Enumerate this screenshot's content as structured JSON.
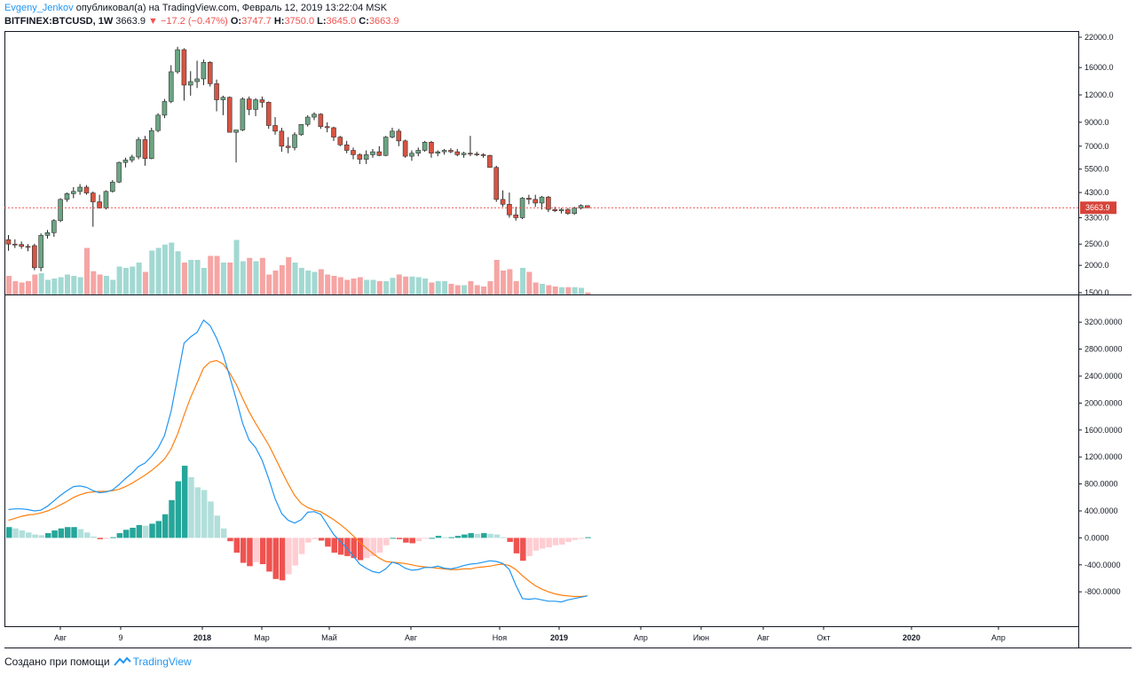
{
  "header": {
    "author": "Evgeny_Jenkov",
    "published_text": "опубликовал(а) на TradingView.com, Февраль 12, 2019 13:22:04 MSK",
    "symbol": "BITFINEX:BTCUSD, 1W",
    "last_price": "3663.9",
    "change": "−17.2 (−0.47%)",
    "change_arrow": "▼",
    "o_label": "O:",
    "o_value": "3747.7",
    "h_label": "H:",
    "h_value": "3750.0",
    "l_label": "L:",
    "l_value": "3645.0",
    "c_label": "C:",
    "c_value": "3663.9"
  },
  "footer": {
    "created_with": "Создано при помощи",
    "brand": "TradingView"
  },
  "colors": {
    "up": "#6ba583",
    "down": "#d75442",
    "vol_up": "#a2d9d2",
    "vol_down": "#f5a5a4",
    "macd_line": "#2196f3",
    "signal_line": "#ff7f0e",
    "hist_up_strong": "#26a69a",
    "hist_up_weak": "#b2dfdb",
    "hist_down_strong": "#ef5350",
    "hist_down_weak": "#ffcdd2",
    "price_line": "#ef5350"
  },
  "chart_data": [
    {
      "type": "candlestick",
      "title": "",
      "y_scale": "log",
      "ylim": [
        1500,
        22000
      ],
      "y_ticks": [
        "22000.0",
        "16000.0",
        "12000.0",
        "9000.0",
        "7000.0",
        "5500.0",
        "4300.0",
        "3300.0",
        "2500.0",
        "2000.0",
        "1500.0"
      ],
      "current_price_label": "3663.9",
      "x_ticks": [
        "Авг",
        "9",
        "2018",
        "Мар",
        "Май",
        "Авг",
        "Ноя",
        "2019",
        "Апр",
        "Июн",
        "Авг",
        "Окт",
        "2020",
        "Апр"
      ],
      "candles": [
        {
          "o": 2620,
          "h": 2750,
          "l": 2330,
          "c": 2500
        },
        {
          "o": 2500,
          "h": 2630,
          "l": 2400,
          "c": 2490
        },
        {
          "o": 2490,
          "h": 2570,
          "l": 2380,
          "c": 2440
        },
        {
          "o": 2440,
          "h": 2500,
          "l": 2320,
          "c": 2420
        },
        {
          "o": 2460,
          "h": 2510,
          "l": 1900,
          "c": 1950
        },
        {
          "o": 1950,
          "h": 2800,
          "l": 1880,
          "c": 2740
        },
        {
          "o": 2740,
          "h": 2900,
          "l": 2650,
          "c": 2820
        },
        {
          "o": 2820,
          "h": 3250,
          "l": 2700,
          "c": 3200
        },
        {
          "o": 3200,
          "h": 4050,
          "l": 3150,
          "c": 4000
        },
        {
          "o": 4000,
          "h": 4300,
          "l": 3900,
          "c": 4250
        },
        {
          "o": 4250,
          "h": 4550,
          "l": 4050,
          "c": 4350
        },
        {
          "o": 4350,
          "h": 4700,
          "l": 4200,
          "c": 4550
        },
        {
          "o": 4550,
          "h": 4650,
          "l": 4200,
          "c": 4280
        },
        {
          "o": 4280,
          "h": 4350,
          "l": 3000,
          "c": 3900
        },
        {
          "o": 3900,
          "h": 4200,
          "l": 3700,
          "c": 3650
        },
        {
          "o": 3650,
          "h": 4400,
          "l": 3600,
          "c": 4350
        },
        {
          "o": 4350,
          "h": 4900,
          "l": 4300,
          "c": 4800
        },
        {
          "o": 4800,
          "h": 5950,
          "l": 4750,
          "c": 5900
        },
        {
          "o": 5900,
          "h": 6200,
          "l": 5600,
          "c": 6050
        },
        {
          "o": 6050,
          "h": 6400,
          "l": 5900,
          "c": 6250
        },
        {
          "o": 6250,
          "h": 7700,
          "l": 6100,
          "c": 7500
        },
        {
          "o": 7500,
          "h": 7800,
          "l": 5700,
          "c": 6150
        },
        {
          "o": 6150,
          "h": 8500,
          "l": 6100,
          "c": 8250
        },
        {
          "o": 8250,
          "h": 9900,
          "l": 8100,
          "c": 9700
        },
        {
          "o": 9700,
          "h": 11500,
          "l": 9400,
          "c": 11200
        },
        {
          "o": 11200,
          "h": 16400,
          "l": 11000,
          "c": 15300
        },
        {
          "o": 15300,
          "h": 19900,
          "l": 15000,
          "c": 19300
        },
        {
          "o": 19300,
          "h": 19600,
          "l": 11300,
          "c": 13300
        },
        {
          "o": 13300,
          "h": 15400,
          "l": 11900,
          "c": 13800
        },
        {
          "o": 13800,
          "h": 17200,
          "l": 12900,
          "c": 14200
        },
        {
          "o": 14200,
          "h": 17400,
          "l": 13300,
          "c": 16900
        },
        {
          "o": 16900,
          "h": 17100,
          "l": 13100,
          "c": 13500
        },
        {
          "o": 13500,
          "h": 14100,
          "l": 10100,
          "c": 11400
        },
        {
          "o": 11400,
          "h": 11900,
          "l": 9700,
          "c": 11700
        },
        {
          "o": 11700,
          "h": 11800,
          "l": 8200,
          "c": 8100
        },
        {
          "o": 8100,
          "h": 8200,
          "l": 5900,
          "c": 8300
        },
        {
          "o": 8300,
          "h": 11700,
          "l": 8200,
          "c": 11500
        },
        {
          "o": 11500,
          "h": 11800,
          "l": 9700,
          "c": 10300
        },
        {
          "o": 10300,
          "h": 11600,
          "l": 9600,
          "c": 11400
        },
        {
          "o": 11400,
          "h": 11800,
          "l": 10500,
          "c": 11100
        },
        {
          "o": 11100,
          "h": 11200,
          "l": 8400,
          "c": 8700
        },
        {
          "o": 8700,
          "h": 9500,
          "l": 7900,
          "c": 8200
        },
        {
          "o": 8200,
          "h": 8500,
          "l": 6600,
          "c": 7000
        },
        {
          "o": 7000,
          "h": 7700,
          "l": 6500,
          "c": 6900
        },
        {
          "o": 6900,
          "h": 8100,
          "l": 6700,
          "c": 7900
        },
        {
          "o": 7900,
          "h": 8800,
          "l": 7800,
          "c": 8800
        },
        {
          "o": 8800,
          "h": 9700,
          "l": 8600,
          "c": 9500
        },
        {
          "o": 9500,
          "h": 10000,
          "l": 9200,
          "c": 9800
        },
        {
          "o": 9800,
          "h": 9900,
          "l": 8400,
          "c": 8600
        },
        {
          "o": 8600,
          "h": 9000,
          "l": 8100,
          "c": 8500
        },
        {
          "o": 8500,
          "h": 8600,
          "l": 7400,
          "c": 7700
        },
        {
          "o": 7700,
          "h": 7800,
          "l": 7000,
          "c": 7100
        },
        {
          "o": 7100,
          "h": 7400,
          "l": 6500,
          "c": 6700
        },
        {
          "o": 6700,
          "h": 6900,
          "l": 6100,
          "c": 6400
        },
        {
          "o": 6400,
          "h": 6500,
          "l": 5800,
          "c": 6100
        },
        {
          "o": 6100,
          "h": 6700,
          "l": 5800,
          "c": 6400
        },
        {
          "o": 6400,
          "h": 6800,
          "l": 6200,
          "c": 6600
        },
        {
          "o": 6600,
          "h": 7000,
          "l": 6300,
          "c": 6350
        },
        {
          "o": 6350,
          "h": 7800,
          "l": 6300,
          "c": 7700
        },
        {
          "o": 7700,
          "h": 8500,
          "l": 7600,
          "c": 8200
        },
        {
          "o": 8200,
          "h": 8400,
          "l": 7000,
          "c": 7400
        },
        {
          "o": 7400,
          "h": 7500,
          "l": 6200,
          "c": 6300
        },
        {
          "o": 6300,
          "h": 6700,
          "l": 6000,
          "c": 6500
        },
        {
          "o": 6500,
          "h": 6900,
          "l": 6300,
          "c": 6700
        },
        {
          "o": 6700,
          "h": 7400,
          "l": 6600,
          "c": 7300
        },
        {
          "o": 7300,
          "h": 7400,
          "l": 6200,
          "c": 6500
        },
        {
          "o": 6500,
          "h": 6700,
          "l": 6300,
          "c": 6600
        },
        {
          "o": 6600,
          "h": 6800,
          "l": 6400,
          "c": 6700
        },
        {
          "o": 6700,
          "h": 6850,
          "l": 6500,
          "c": 6600
        },
        {
          "o": 6600,
          "h": 6800,
          "l": 6300,
          "c": 6400
        },
        {
          "o": 6400,
          "h": 6600,
          "l": 6200,
          "c": 6500
        },
        {
          "o": 6500,
          "h": 7800,
          "l": 6300,
          "c": 6450
        },
        {
          "o": 6450,
          "h": 6600,
          "l": 6300,
          "c": 6400
        },
        {
          "o": 6400,
          "h": 6500,
          "l": 6200,
          "c": 6350
        },
        {
          "o": 6350,
          "h": 6400,
          "l": 5600,
          "c": 5600
        },
        {
          "o": 5600,
          "h": 5700,
          "l": 3900,
          "c": 4000
        },
        {
          "o": 4000,
          "h": 4400,
          "l": 3700,
          "c": 3800
        },
        {
          "o": 3800,
          "h": 4300,
          "l": 3300,
          "c": 3400
        },
        {
          "o": 3400,
          "h": 3700,
          "l": 3200,
          "c": 3300
        },
        {
          "o": 3300,
          "h": 4100,
          "l": 3250,
          "c": 4050
        },
        {
          "o": 4050,
          "h": 4200,
          "l": 3800,
          "c": 4000
        },
        {
          "o": 4000,
          "h": 4200,
          "l": 3700,
          "c": 3850
        },
        {
          "o": 3850,
          "h": 4150,
          "l": 3600,
          "c": 4100
        },
        {
          "o": 4100,
          "h": 4150,
          "l": 3500,
          "c": 3600
        },
        {
          "o": 3600,
          "h": 3700,
          "l": 3500,
          "c": 3550
        },
        {
          "o": 3550,
          "h": 3650,
          "l": 3450,
          "c": 3600
        },
        {
          "o": 3600,
          "h": 3650,
          "l": 3400,
          "c": 3450
        },
        {
          "o": 3450,
          "h": 3700,
          "l": 3400,
          "c": 3650
        },
        {
          "o": 3650,
          "h": 3800,
          "l": 3600,
          "c": 3750
        },
        {
          "o": 3748,
          "h": 3750,
          "l": 3645,
          "c": 3664
        }
      ],
      "volume": [
        0.28,
        0.2,
        0.18,
        0.2,
        0.3,
        0.32,
        0.22,
        0.24,
        0.26,
        0.3,
        0.28,
        0.26,
        0.7,
        0.35,
        0.3,
        0.28,
        0.22,
        0.42,
        0.4,
        0.42,
        0.48,
        0.34,
        0.66,
        0.7,
        0.75,
        0.78,
        0.65,
        0.48,
        0.52,
        0.52,
        0.4,
        0.58,
        0.58,
        0.48,
        0.48,
        0.82,
        0.5,
        0.55,
        0.5,
        0.55,
        0.3,
        0.36,
        0.44,
        0.56,
        0.48,
        0.4,
        0.36,
        0.34,
        0.38,
        0.3,
        0.28,
        0.26,
        0.22,
        0.24,
        0.26,
        0.22,
        0.22,
        0.2,
        0.2,
        0.25,
        0.3,
        0.27,
        0.27,
        0.26,
        0.24,
        0.18,
        0.2,
        0.2,
        0.16,
        0.14,
        0.14,
        0.2,
        0.14,
        0.12,
        0.2,
        0.52,
        0.36,
        0.38,
        0.2,
        0.4,
        0.34,
        0.18,
        0.16,
        0.14,
        0.12,
        0.11,
        0.11,
        0.11,
        0.1,
        0.03
      ]
    },
    {
      "type": "line",
      "title": "",
      "ylim": [
        -1100,
        3400
      ],
      "y_ticks": [
        "3200.0000",
        "2800.0000",
        "2400.0000",
        "2000.0000",
        "1600.0000",
        "1200.0000",
        "800.0000",
        "400.0000",
        "0.0000",
        "-400.0000",
        "-800.0000"
      ],
      "series": [
        {
          "key": "macd",
          "values": [
            420,
            430,
            430,
            420,
            400,
            410,
            470,
            550,
            630,
            700,
            760,
            770,
            750,
            700,
            670,
            680,
            710,
            790,
            880,
            960,
            1060,
            1110,
            1210,
            1330,
            1520,
            1880,
            2380,
            2890,
            2980,
            3050,
            3230,
            3150,
            2960,
            2720,
            2400,
            2060,
            1700,
            1450,
            1340,
            1150,
            880,
            580,
            360,
            260,
            220,
            270,
            380,
            390,
            350,
            200,
            50,
            -50,
            -150,
            -270,
            -390,
            -450,
            -500,
            -520,
            -460,
            -360,
            -390,
            -450,
            -480,
            -470,
            -440,
            -440,
            -420,
            -450,
            -460,
            -440,
            -410,
            -390,
            -380,
            -360,
            -340,
            -350,
            -380,
            -470,
            -700,
            -900,
            -910,
            -900,
            -920,
            -940,
            -940,
            -950,
            -920,
            -900,
            -880,
            -860
          ]
        },
        {
          "key": "signal",
          "values": [
            260,
            290,
            320,
            340,
            350,
            370,
            400,
            440,
            490,
            540,
            600,
            640,
            670,
            680,
            690,
            690,
            700,
            720,
            760,
            810,
            870,
            930,
            1000,
            1080,
            1170,
            1320,
            1540,
            1820,
            2080,
            2300,
            2520,
            2610,
            2630,
            2580,
            2450,
            2280,
            2070,
            1870,
            1700,
            1540,
            1380,
            1190,
            990,
            800,
            630,
            510,
            450,
            410,
            390,
            330,
            270,
            200,
            120,
            30,
            -60,
            -150,
            -230,
            -300,
            -350,
            -360,
            -370,
            -380,
            -400,
            -420,
            -430,
            -440,
            -450,
            -460,
            -470,
            -470,
            -460,
            -460,
            -440,
            -430,
            -420,
            -400,
            -390,
            -410,
            -470,
            -560,
            -640,
            -710,
            -760,
            -800,
            -830,
            -850,
            -860,
            -870,
            -870,
            -860
          ]
        },
        {
          "key": "histogram",
          "values": [
            160,
            140,
            110,
            80,
            50,
            40,
            70,
            110,
            140,
            160,
            160,
            130,
            80,
            20,
            -20,
            -10,
            10,
            70,
            120,
            150,
            190,
            180,
            210,
            250,
            350,
            560,
            840,
            1070,
            900,
            750,
            710,
            540,
            330,
            140,
            -50,
            -220,
            -370,
            -420,
            -360,
            -390,
            -500,
            -610,
            -630,
            -540,
            -410,
            -240,
            -70,
            -20,
            -40,
            -130,
            -220,
            -250,
            -270,
            -300,
            -330,
            -300,
            -270,
            -220,
            -110,
            0,
            -20,
            -70,
            -80,
            -50,
            -10,
            0,
            30,
            10,
            10,
            30,
            50,
            70,
            60,
            70,
            60,
            50,
            10,
            -60,
            -230,
            -340,
            -270,
            -190,
            -160,
            -140,
            -110,
            -100,
            -60,
            -30,
            -10,
            10
          ]
        }
      ],
      "x_ticks": [
        "Авг",
        "9",
        "2018",
        "Мар",
        "Май",
        "Авг",
        "Ноя",
        "2019",
        "Апр",
        "Июн",
        "Авг",
        "Окт",
        "2020",
        "Апр"
      ]
    }
  ]
}
